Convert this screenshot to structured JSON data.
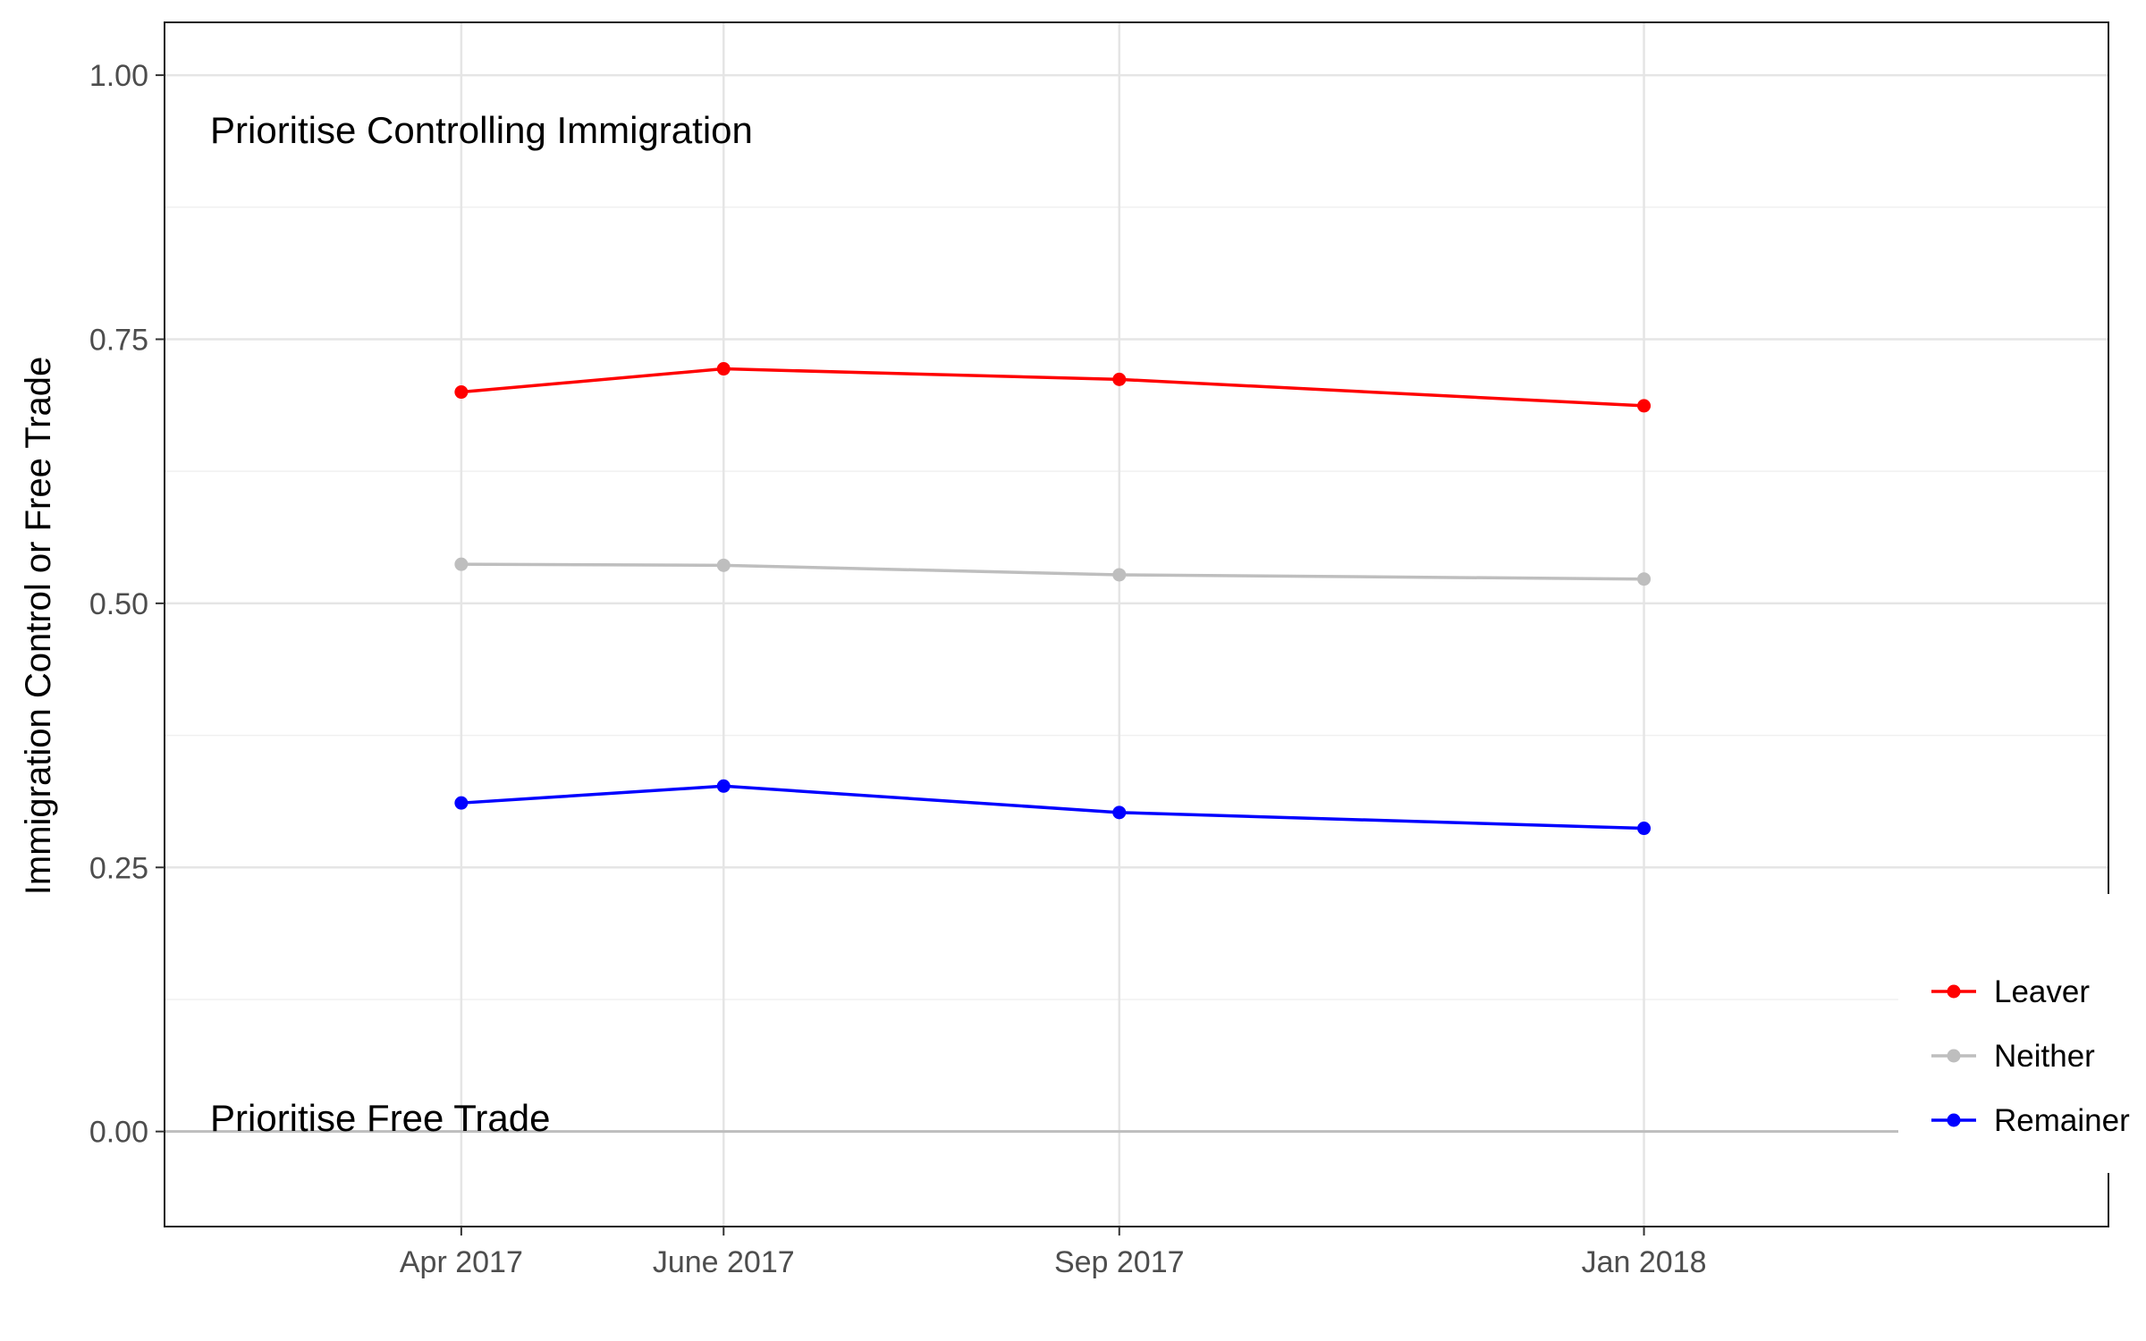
{
  "chart_data": {
    "type": "line",
    "title": "",
    "xlabel": "",
    "ylabel": "Immigration Control or Free Trade",
    "categories": [
      "Apr 2017",
      "June 2017",
      "Sep 2017",
      "Jan 2018"
    ],
    "x_dates": [
      "2017-04-01",
      "2017-06-01",
      "2017-09-01",
      "2018-01-01"
    ],
    "xlim": [
      "2017-01-22",
      "2018-04-19"
    ],
    "ylim": [
      -0.09,
      1.05
    ],
    "yticks": [
      0.0,
      0.25,
      0.5,
      0.75,
      1.0
    ],
    "ytick_labels": [
      "0.00",
      "0.25",
      "0.50",
      "0.75",
      "1.00"
    ],
    "series": [
      {
        "name": "Leaver",
        "color": "#ff0000",
        "values": [
          0.7,
          0.722,
          0.712,
          0.687
        ]
      },
      {
        "name": "Neither",
        "color": "#bebebe",
        "values": [
          0.537,
          0.536,
          0.527,
          0.523
        ]
      },
      {
        "name": "Remainer",
        "color": "#0000ff",
        "values": [
          0.311,
          0.327,
          0.302,
          0.287
        ]
      }
    ],
    "annotations": {
      "top": "Prioritise Controlling Immigration",
      "bottom": "Prioritise Free Trade"
    },
    "reference_line": 0.0,
    "grid": true,
    "legend_position": "right"
  }
}
